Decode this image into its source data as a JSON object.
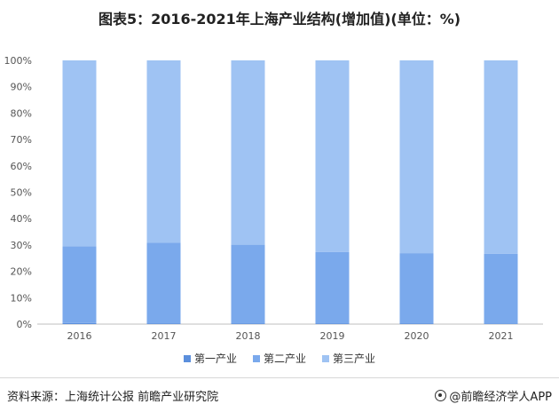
{
  "title": "图表5：2016-2021年上海产业结构(增加值)(单位：%)",
  "chart_data": {
    "type": "bar",
    "stacked": true,
    "categories": [
      "2016",
      "2017",
      "2018",
      "2019",
      "2020",
      "2021"
    ],
    "series": [
      {
        "name": "第一产业",
        "values": [
          0.4,
          0.3,
          0.3,
          0.3,
          0.3,
          0.2
        ],
        "color": "#5b8fdc"
      },
      {
        "name": "第二产业",
        "values": [
          29.1,
          30.5,
          29.8,
          27.0,
          26.6,
          26.5
        ],
        "color": "#7aa9ec"
      },
      {
        "name": "第三产业",
        "values": [
          70.5,
          69.2,
          69.9,
          72.7,
          73.1,
          73.3
        ],
        "color": "#9fc3f3"
      }
    ],
    "yticks": [
      "0%",
      "10%",
      "20%",
      "30%",
      "40%",
      "50%",
      "60%",
      "70%",
      "80%",
      "90%",
      "100%"
    ],
    "ylim": [
      0,
      100
    ],
    "legend_position": "bottom"
  },
  "footer": {
    "source": "资料来源：上海统计公报 前瞻产业研究院",
    "brand": "@前瞻经济学人APP"
  }
}
